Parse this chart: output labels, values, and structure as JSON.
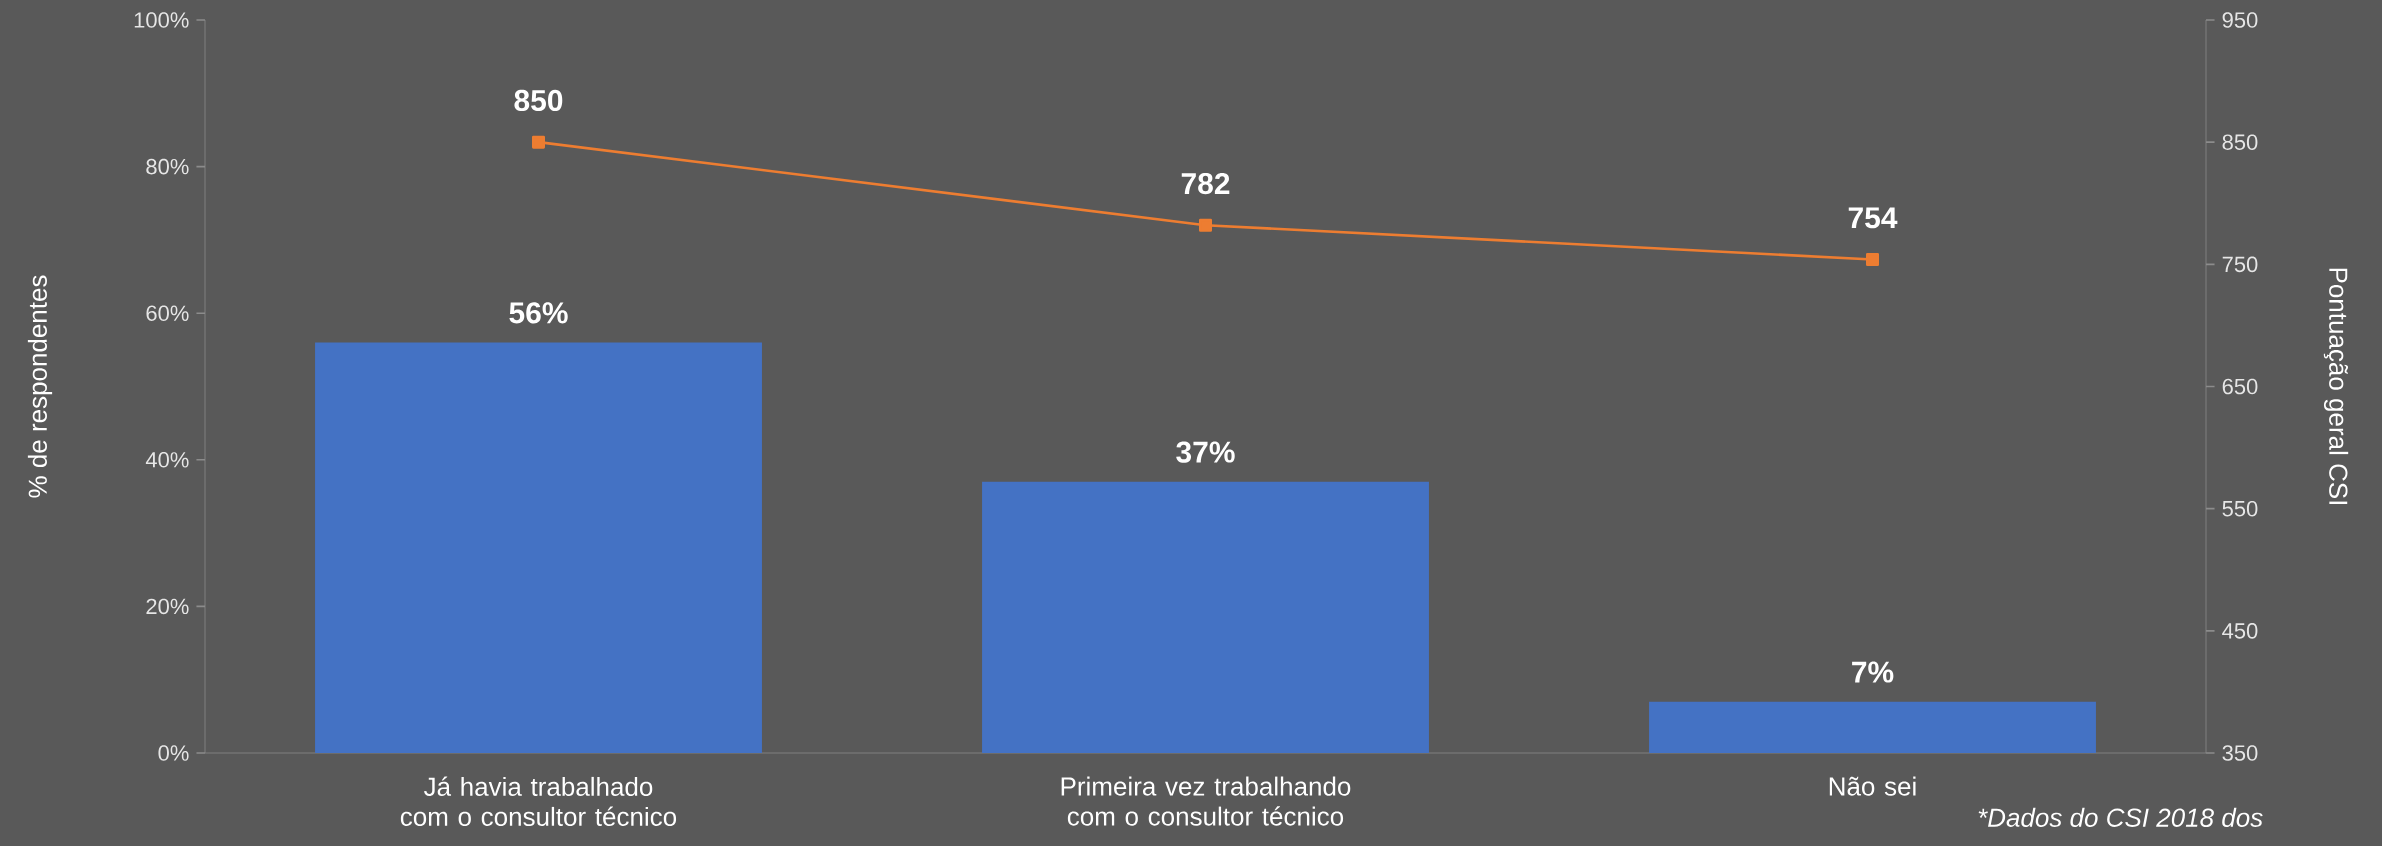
{
  "chart_data": {
    "type": "bar",
    "categories": [
      "Já havia trabalhado com o consultor técnico",
      "Primeira vez trabalhando com o consultor técnico",
      "Não sei"
    ],
    "series": [
      {
        "color": "#4472c4",
        "values": [
          56,
          37,
          7
        ],
        "value_labels": [
          "56%",
          "37%",
          "7%"
        ]
      },
      {
        "type": "line",
        "axis": "y2",
        "color": "#ed7d31",
        "values": [
          850,
          782,
          754
        ],
        "value_labels": [
          "850",
          "782",
          "754"
        ]
      }
    ],
    "ylabel": "% de respondentes",
    "y2label": "Pontuação geral CSI",
    "ylim": [
      0,
      100
    ],
    "yticks": [
      {
        "value": 0,
        "label": "0%"
      },
      {
        "value": 20,
        "label": "20%"
      },
      {
        "value": 40,
        "label": "40%"
      },
      {
        "value": 60,
        "label": "60%"
      },
      {
        "value": 80,
        "label": "80%"
      },
      {
        "value": 100,
        "label": "100%"
      }
    ],
    "y2lim": [
      350,
      950
    ],
    "y2ticks": [
      350,
      450,
      550,
      650,
      750,
      850,
      950
    ],
    "marker": "square",
    "line_style": "solid",
    "grid": false,
    "legend": false,
    "annotations": [
      "*Dados do CSI 2018 dos"
    ]
  }
}
